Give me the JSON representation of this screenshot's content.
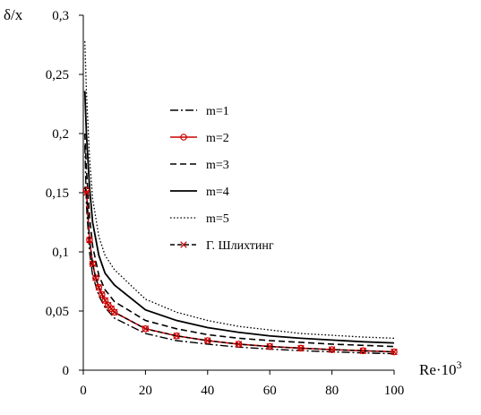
{
  "chart_data": {
    "type": "line",
    "title": "",
    "ylabel": "δ/x",
    "xlabel": "Re·10",
    "xlabel_superscript": "3",
    "xlim": [
      0,
      100
    ],
    "ylim": [
      0,
      0.3
    ],
    "x_ticks": [
      0,
      20,
      40,
      60,
      80,
      100
    ],
    "x_tick_labels": [
      "0",
      "20",
      "40",
      "60",
      "80",
      "100"
    ],
    "y_ticks": [
      0,
      0.05,
      0.1,
      0.15,
      0.2,
      0.25,
      0.3
    ],
    "y_tick_labels": [
      "0",
      "0,05",
      "0,1",
      "0,15",
      "0,2",
      "0,25",
      "0,3"
    ],
    "grid": false,
    "legend_position": "center",
    "series": [
      {
        "name": "m=1",
        "style": "dashdot",
        "color": "#000000",
        "x": [
          0.5,
          1,
          2,
          3,
          5,
          7,
          10,
          20,
          30,
          40,
          50,
          60,
          70,
          80,
          90,
          100
        ],
        "y": [
          0.19,
          0.14,
          0.1,
          0.08,
          0.063,
          0.053,
          0.044,
          0.031,
          0.025,
          0.022,
          0.0195,
          0.0178,
          0.0165,
          0.0155,
          0.0146,
          0.0139
        ]
      },
      {
        "name": "m=2",
        "style": "solid-circle",
        "color": "#cc0000",
        "x": [
          0.5,
          1,
          2,
          3,
          4,
          5,
          6,
          7,
          8,
          9,
          10,
          20,
          30,
          40,
          50,
          60,
          70,
          80,
          90,
          100
        ],
        "y": [
          0.155,
          0.152,
          0.11,
          0.09,
          0.078,
          0.07,
          0.064,
          0.059,
          0.055,
          0.052,
          0.049,
          0.035,
          0.029,
          0.025,
          0.022,
          0.02,
          0.0186,
          0.0174,
          0.0164,
          0.0155
        ]
      },
      {
        "name": "m=3",
        "style": "dashed",
        "color": "#000000",
        "x": [
          0.5,
          1,
          2,
          3,
          5,
          7,
          10,
          20,
          30,
          40,
          50,
          60,
          70,
          80,
          90,
          100
        ],
        "y": [
          0.2,
          0.17,
          0.13,
          0.105,
          0.08,
          0.068,
          0.058,
          0.042,
          0.035,
          0.03,
          0.027,
          0.025,
          0.0235,
          0.022,
          0.021,
          0.02
        ]
      },
      {
        "name": "m=4",
        "style": "solid",
        "color": "#000000",
        "x": [
          0.5,
          1,
          2,
          3,
          5,
          7,
          10,
          20,
          30,
          40,
          50,
          60,
          70,
          80,
          90,
          100
        ],
        "y": [
          0.236,
          0.2,
          0.155,
          0.125,
          0.097,
          0.082,
          0.072,
          0.051,
          0.042,
          0.036,
          0.032,
          0.029,
          0.027,
          0.0255,
          0.024,
          0.023
        ]
      },
      {
        "name": "m=5",
        "style": "dotted",
        "color": "#000000",
        "x": [
          0.5,
          1,
          2,
          3,
          5,
          7,
          10,
          20,
          30,
          40,
          50,
          60,
          70,
          80,
          90,
          100
        ],
        "y": [
          0.278,
          0.235,
          0.18,
          0.145,
          0.113,
          0.097,
          0.085,
          0.06,
          0.049,
          0.042,
          0.037,
          0.034,
          0.031,
          0.0295,
          0.028,
          0.027
        ]
      },
      {
        "name": "Г. Шлихтинг",
        "style": "dashed-cross",
        "color": "#000000",
        "marker_color": "#cc0000",
        "x": [
          0.5,
          1,
          2,
          3,
          4,
          5,
          6,
          7,
          8,
          9,
          10,
          20,
          30,
          40,
          50,
          60,
          70,
          80,
          90,
          100
        ],
        "y": [
          0.155,
          0.15,
          0.11,
          0.09,
          0.078,
          0.07,
          0.064,
          0.059,
          0.055,
          0.052,
          0.049,
          0.035,
          0.029,
          0.025,
          0.022,
          0.02,
          0.0186,
          0.0174,
          0.0164,
          0.0155
        ]
      }
    ]
  }
}
